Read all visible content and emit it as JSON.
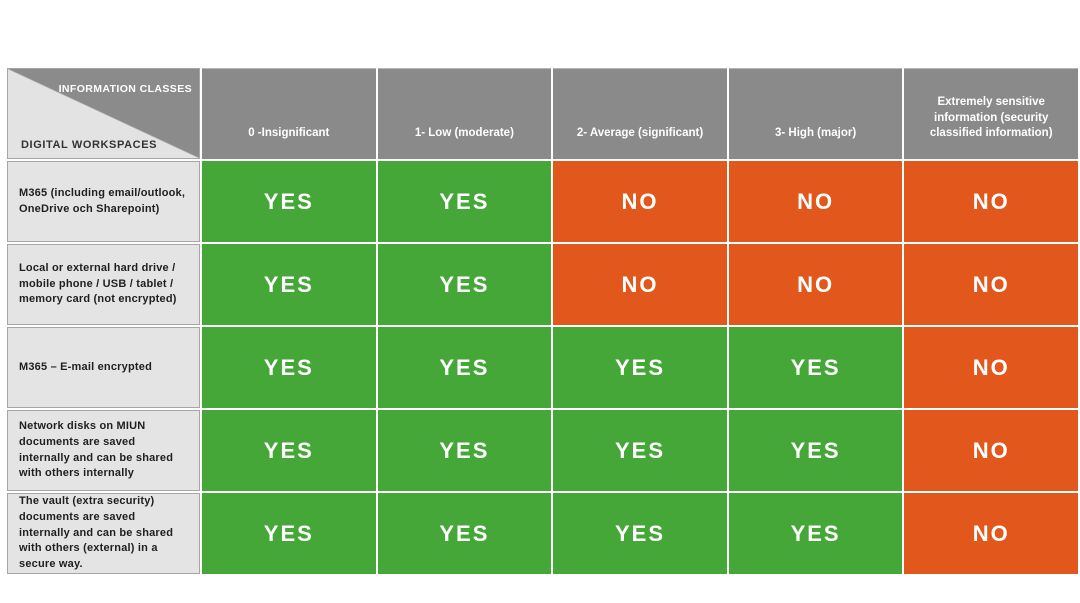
{
  "chart_data": {
    "type": "table",
    "title": "",
    "corner": {
      "top_label": "INFORMATION CLASSES",
      "bottom_label": "DIGITAL WORKSPACES"
    },
    "columns": [
      "0 -Insignificant",
      "1- Low (moderate)",
      "2- Average (significant)",
      "3- High (major)",
      "Extremely sensitive information (security classified information)"
    ],
    "rows": [
      {
        "label": "M365 (including email/outlook, OneDrive och Sharepoint)",
        "values": [
          "YES",
          "YES",
          "NO",
          "NO",
          "NO"
        ]
      },
      {
        "label": "Local or external hard drive / mobile phone / USB / tablet / memory card (not encrypted)",
        "values": [
          "YES",
          "YES",
          "NO",
          "NO",
          "NO"
        ]
      },
      {
        "label": "M365 – E-mail encrypted",
        "values": [
          "YES",
          "YES",
          "YES",
          "YES",
          "NO"
        ]
      },
      {
        "label": "Network disks on MIUN documents are saved internally and can be shared with others internally",
        "values": [
          "YES",
          "YES",
          "YES",
          "YES",
          "NO"
        ]
      },
      {
        "label": "The vault (extra security) documents are saved internally and can be shared with others (external) in a secure way.",
        "values": [
          "YES",
          "YES",
          "YES",
          "YES",
          "NO"
        ]
      }
    ],
    "colors": {
      "yes_bg": "#44a738",
      "no_bg": "#e2571c",
      "header_bg": "#8a8a8a",
      "label_bg": "#e4e4e4",
      "corner_dark": "#8b8b8b",
      "corner_light": "#e3e3e3"
    }
  }
}
